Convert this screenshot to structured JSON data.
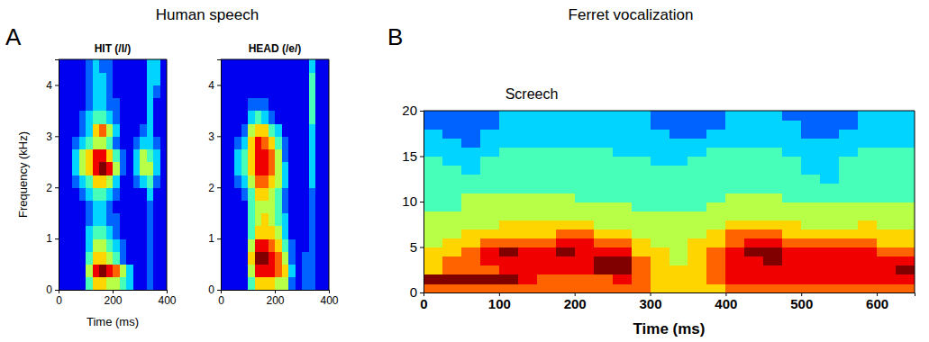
{
  "figure": {
    "panels": [
      {
        "letter": "A",
        "title": "Human speech"
      },
      {
        "letter": "B",
        "title": "Ferret vocalization"
      }
    ]
  },
  "chart_data": [
    {
      "type": "heatmap",
      "title": "HIT (/I/)",
      "xlabel": "Time (ms)",
      "ylabel": "Frequency (kHz)",
      "xlim": [
        0,
        400
      ],
      "ylim": [
        0,
        4.5
      ],
      "xticks": [
        0,
        200,
        400
      ],
      "yticks": [
        0,
        1,
        2,
        3,
        4
      ],
      "zlim": [
        0,
        9
      ],
      "x": [
        12.5,
        37.5,
        62.5,
        87.5,
        112.5,
        137.5,
        162.5,
        187.5,
        212.5,
        237.5,
        262.5,
        287.5,
        312.5,
        337.5,
        362.5,
        387.5
      ],
      "y": [
        0.125,
        0.375,
        0.625,
        0.875,
        1.125,
        1.375,
        1.625,
        1.875,
        2.125,
        2.375,
        2.625,
        2.875,
        3.125,
        3.375,
        3.625,
        3.875,
        4.125,
        4.375
      ],
      "z": [
        [
          1,
          1,
          1,
          1,
          4,
          6,
          6,
          5,
          5,
          4,
          3,
          1,
          1,
          2,
          1,
          1
        ],
        [
          1,
          1,
          1,
          1,
          5,
          8,
          9,
          8,
          7,
          5,
          3,
          1,
          1,
          2,
          1,
          1
        ],
        [
          1,
          1,
          1,
          1,
          4,
          6,
          6,
          5,
          4,
          2,
          1,
          1,
          1,
          2,
          1,
          1
        ],
        [
          1,
          1,
          1,
          1,
          3,
          5,
          5,
          4,
          3,
          2,
          1,
          1,
          1,
          2,
          1,
          1
        ],
        [
          1,
          1,
          1,
          1,
          3,
          4,
          4,
          3,
          2,
          1,
          1,
          1,
          1,
          2,
          1,
          1
        ],
        [
          1,
          1,
          1,
          1,
          2,
          3,
          3,
          2,
          2,
          1,
          1,
          1,
          1,
          2,
          1,
          1
        ],
        [
          1,
          1,
          1,
          1,
          2,
          3,
          3,
          2,
          1,
          1,
          1,
          1,
          1,
          2,
          1,
          1
        ],
        [
          1,
          1,
          1,
          2,
          3,
          4,
          4,
          3,
          2,
          1,
          1,
          1,
          1,
          3,
          1,
          1
        ],
        [
          1,
          1,
          2,
          3,
          4,
          6,
          6,
          5,
          3,
          1,
          1,
          2,
          3,
          4,
          2,
          1
        ],
        [
          1,
          1,
          3,
          5,
          6,
          8,
          9,
          8,
          5,
          2,
          1,
          3,
          5,
          5,
          3,
          1
        ],
        [
          1,
          1,
          3,
          5,
          6,
          8,
          8,
          6,
          4,
          2,
          1,
          3,
          5,
          4,
          3,
          1
        ],
        [
          1,
          1,
          2,
          3,
          4,
          5,
          5,
          4,
          2,
          1,
          1,
          2,
          3,
          3,
          2,
          1
        ],
        [
          1,
          1,
          1,
          2,
          3,
          6,
          7,
          5,
          3,
          1,
          1,
          1,
          2,
          3,
          1,
          1
        ],
        [
          1,
          1,
          1,
          2,
          3,
          4,
          4,
          3,
          2,
          1,
          1,
          1,
          1,
          3,
          1,
          1
        ],
        [
          1,
          1,
          1,
          1,
          2,
          3,
          3,
          2,
          2,
          1,
          1,
          1,
          1,
          3,
          1,
          1
        ],
        [
          1,
          1,
          1,
          1,
          2,
          3,
          3,
          2,
          1,
          1,
          1,
          1,
          1,
          3,
          2,
          1
        ],
        [
          1,
          1,
          1,
          1,
          2,
          3,
          3,
          2,
          1,
          1,
          1,
          1,
          1,
          3,
          3,
          1
        ],
        [
          1,
          1,
          1,
          1,
          2,
          3,
          2,
          2,
          1,
          1,
          1,
          1,
          1,
          3,
          3,
          1
        ]
      ]
    },
    {
      "type": "heatmap",
      "title": "HEAD (/e/)",
      "xlim": [
        0,
        400
      ],
      "ylim": [
        0,
        4.5
      ],
      "xticks": [
        0,
        200,
        400
      ],
      "yticks": [
        0,
        1,
        2,
        3,
        4
      ],
      "zlim": [
        0,
        9
      ],
      "x": [
        12.5,
        37.5,
        62.5,
        87.5,
        112.5,
        137.5,
        162.5,
        187.5,
        212.5,
        237.5,
        262.5,
        287.5,
        312.5,
        337.5,
        362.5,
        387.5
      ],
      "y": [
        0.125,
        0.375,
        0.625,
        0.875,
        1.125,
        1.375,
        1.625,
        1.875,
        2.125,
        2.375,
        2.625,
        2.875,
        3.125,
        3.375,
        3.625,
        3.875,
        4.125,
        4.375
      ],
      "z": [
        [
          1,
          1,
          1,
          1,
          4,
          6,
          6,
          6,
          5,
          5,
          2,
          1,
          2,
          2,
          1,
          1
        ],
        [
          1,
          1,
          1,
          1,
          5,
          8,
          8,
          8,
          7,
          6,
          3,
          1,
          2,
          2,
          1,
          1
        ],
        [
          1,
          1,
          1,
          1,
          6,
          9,
          9,
          8,
          7,
          5,
          2,
          1,
          2,
          2,
          1,
          1
        ],
        [
          1,
          1,
          1,
          1,
          5,
          8,
          8,
          7,
          6,
          4,
          2,
          1,
          1,
          2,
          1,
          1
        ],
        [
          1,
          1,
          1,
          1,
          4,
          6,
          6,
          6,
          5,
          3,
          1,
          1,
          1,
          2,
          1,
          1
        ],
        [
          1,
          1,
          1,
          1,
          4,
          5,
          6,
          5,
          4,
          3,
          1,
          1,
          1,
          2,
          1,
          1
        ],
        [
          1,
          1,
          1,
          1,
          4,
          5,
          5,
          5,
          4,
          2,
          1,
          1,
          1,
          2,
          1,
          1
        ],
        [
          1,
          1,
          1,
          2,
          4,
          6,
          6,
          5,
          4,
          2,
          1,
          1,
          1,
          2,
          1,
          1
        ],
        [
          1,
          1,
          2,
          3,
          5,
          7,
          7,
          6,
          5,
          3,
          1,
          1,
          1,
          3,
          1,
          1
        ],
        [
          1,
          1,
          3,
          4,
          6,
          8,
          8,
          7,
          5,
          3,
          1,
          1,
          1,
          3,
          1,
          1
        ],
        [
          1,
          1,
          3,
          4,
          6,
          8,
          8,
          7,
          5,
          2,
          1,
          1,
          1,
          3,
          1,
          1
        ],
        [
          1,
          1,
          2,
          3,
          6,
          8,
          7,
          6,
          4,
          2,
          1,
          1,
          1,
          3,
          1,
          1
        ],
        [
          1,
          1,
          1,
          2,
          5,
          6,
          6,
          4,
          3,
          1,
          1,
          1,
          1,
          3,
          1,
          1
        ],
        [
          1,
          1,
          1,
          1,
          3,
          4,
          3,
          2,
          1,
          1,
          1,
          1,
          1,
          4,
          1,
          1
        ],
        [
          1,
          1,
          1,
          1,
          2,
          2,
          2,
          1,
          1,
          1,
          1,
          1,
          1,
          4,
          1,
          1
        ],
        [
          1,
          1,
          1,
          1,
          1,
          1,
          1,
          1,
          1,
          1,
          1,
          1,
          1,
          4,
          1,
          1
        ],
        [
          1,
          1,
          1,
          1,
          1,
          1,
          1,
          1,
          1,
          1,
          1,
          1,
          1,
          4,
          1,
          1
        ],
        [
          1,
          1,
          1,
          1,
          1,
          1,
          1,
          1,
          1,
          1,
          1,
          1,
          1,
          3,
          1,
          1
        ]
      ]
    },
    {
      "type": "heatmap",
      "title": "Screech",
      "xlabel": "Time (ms)",
      "xlim": [
        0,
        650
      ],
      "ylim": [
        0,
        20
      ],
      "xticks": [
        0,
        100,
        200,
        300,
        400,
        500,
        600
      ],
      "yticks": [
        0,
        5,
        10,
        15,
        20
      ],
      "zlim": [
        0,
        9
      ],
      "x": [
        12.5,
        37.5,
        62.5,
        87.5,
        112.5,
        137.5,
        162.5,
        187.5,
        212.5,
        237.5,
        262.5,
        287.5,
        312.5,
        337.5,
        362.5,
        387.5,
        412.5,
        437.5,
        462.5,
        487.5,
        512.5,
        537.5,
        562.5,
        587.5,
        612.5,
        637.5
      ],
      "y": [
        0.5,
        1.5,
        2.5,
        3.5,
        4.5,
        5.5,
        6.5,
        7.5,
        8.5,
        9.5,
        10.5,
        11.5,
        12.5,
        13.5,
        14.5,
        15.5,
        16.5,
        17.5,
        18.5,
        19.5
      ],
      "z": [
        [
          7,
          7,
          7,
          7,
          7,
          7,
          7,
          7,
          7,
          7,
          7,
          7,
          6,
          6,
          6,
          6,
          7,
          7,
          7,
          7,
          7,
          7,
          7,
          7,
          7,
          7
        ],
        [
          9,
          9,
          9,
          9,
          9,
          8,
          7,
          7,
          7,
          7,
          8,
          7,
          6,
          6,
          6,
          7,
          8,
          8,
          8,
          8,
          8,
          8,
          8,
          8,
          8,
          8
        ],
        [
          6,
          7,
          7,
          7,
          8,
          8,
          8,
          8,
          8,
          9,
          9,
          7,
          6,
          6,
          6,
          7,
          8,
          8,
          8,
          8,
          8,
          8,
          8,
          8,
          8,
          9
        ],
        [
          6,
          7,
          7,
          8,
          8,
          8,
          8,
          8,
          8,
          9,
          9,
          7,
          6,
          5,
          6,
          7,
          8,
          8,
          9,
          8,
          8,
          8,
          8,
          8,
          8,
          8
        ],
        [
          6,
          6,
          7,
          8,
          9,
          8,
          8,
          9,
          8,
          8,
          8,
          6,
          6,
          5,
          6,
          7,
          8,
          9,
          9,
          8,
          8,
          8,
          8,
          8,
          7,
          7
        ],
        [
          5,
          6,
          6,
          7,
          7,
          7,
          7,
          8,
          8,
          7,
          7,
          6,
          5,
          5,
          6,
          6,
          7,
          8,
          8,
          7,
          7,
          7,
          7,
          7,
          6,
          6
        ],
        [
          5,
          5,
          6,
          6,
          6,
          6,
          6,
          7,
          7,
          6,
          6,
          5,
          5,
          5,
          5,
          6,
          7,
          7,
          7,
          6,
          6,
          6,
          6,
          6,
          6,
          6
        ],
        [
          5,
          5,
          5,
          5,
          6,
          6,
          6,
          6,
          6,
          5,
          5,
          5,
          5,
          5,
          5,
          5,
          6,
          6,
          6,
          6,
          5,
          5,
          5,
          6,
          5,
          5
        ],
        [
          5,
          5,
          5,
          5,
          5,
          5,
          5,
          5,
          5,
          5,
          5,
          5,
          5,
          5,
          5,
          5,
          5,
          5,
          5,
          5,
          5,
          5,
          5,
          5,
          5,
          5
        ],
        [
          4,
          4,
          5,
          5,
          5,
          5,
          5,
          5,
          5,
          5,
          5,
          4,
          4,
          4,
          4,
          5,
          5,
          5,
          5,
          5,
          5,
          5,
          5,
          5,
          5,
          5
        ],
        [
          4,
          4,
          5,
          5,
          5,
          5,
          5,
          5,
          4,
          4,
          4,
          4,
          4,
          4,
          4,
          4,
          5,
          5,
          5,
          4,
          4,
          4,
          4,
          4,
          4,
          4
        ],
        [
          4,
          4,
          4,
          4,
          4,
          4,
          4,
          4,
          4,
          4,
          4,
          4,
          4,
          4,
          4,
          4,
          4,
          4,
          4,
          4,
          4,
          4,
          4,
          4,
          4,
          4
        ],
        [
          4,
          4,
          4,
          4,
          4,
          4,
          4,
          4,
          4,
          4,
          4,
          4,
          4,
          4,
          4,
          4,
          4,
          4,
          4,
          4,
          4,
          3,
          4,
          4,
          4,
          4
        ],
        [
          4,
          4,
          3,
          4,
          4,
          4,
          4,
          4,
          4,
          4,
          4,
          4,
          4,
          4,
          4,
          4,
          4,
          4,
          4,
          4,
          3,
          3,
          4,
          4,
          4,
          4
        ],
        [
          4,
          3,
          3,
          4,
          4,
          4,
          4,
          4,
          4,
          4,
          4,
          4,
          3,
          3,
          4,
          4,
          4,
          4,
          4,
          4,
          3,
          3,
          4,
          4,
          4,
          4
        ],
        [
          3,
          3,
          3,
          3,
          4,
          4,
          4,
          4,
          4,
          4,
          3,
          3,
          3,
          3,
          3,
          4,
          4,
          4,
          4,
          3,
          3,
          3,
          3,
          4,
          4,
          4
        ],
        [
          3,
          3,
          2,
          3,
          3,
          3,
          3,
          3,
          3,
          3,
          3,
          3,
          3,
          3,
          3,
          3,
          3,
          3,
          3,
          3,
          3,
          3,
          3,
          3,
          3,
          3
        ],
        [
          3,
          2,
          2,
          3,
          3,
          3,
          3,
          3,
          3,
          3,
          3,
          3,
          3,
          2,
          2,
          3,
          3,
          3,
          3,
          3,
          2,
          2,
          3,
          3,
          3,
          3
        ],
        [
          2,
          2,
          2,
          2,
          3,
          3,
          3,
          3,
          3,
          3,
          3,
          3,
          2,
          2,
          2,
          2,
          3,
          3,
          3,
          3,
          2,
          2,
          2,
          3,
          3,
          3
        ],
        [
          2,
          2,
          2,
          2,
          3,
          3,
          3,
          3,
          3,
          3,
          3,
          3,
          2,
          2,
          2,
          2,
          3,
          3,
          3,
          2,
          2,
          2,
          2,
          3,
          3,
          3
        ]
      ]
    }
  ]
}
